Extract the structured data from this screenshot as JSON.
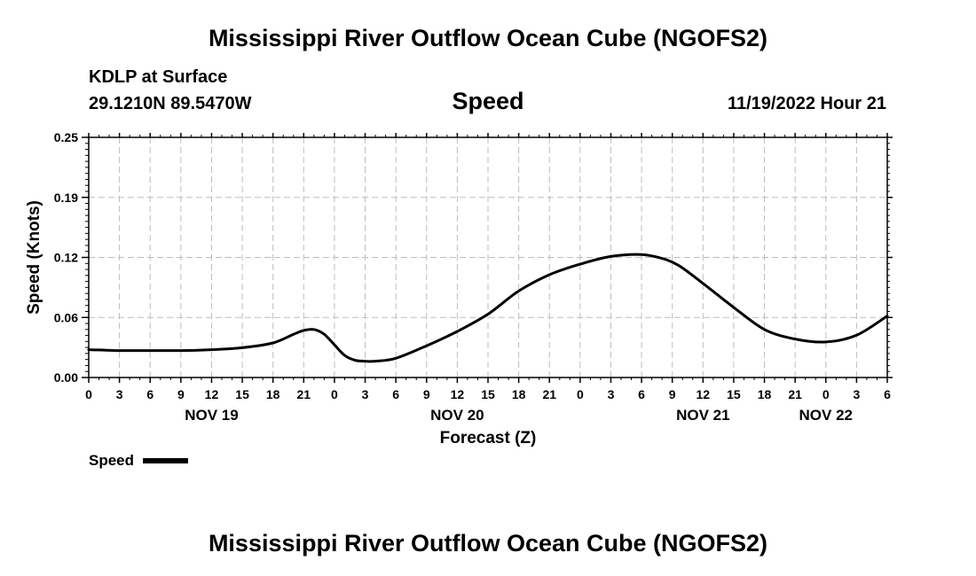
{
  "header": {
    "title": "Mississippi River Outflow Ocean Cube (NGOFS2)",
    "station": "KDLP at Surface",
    "coordinates": "29.1210N  89.5470W",
    "panel_title": "Speed",
    "datetime": "11/19/2022 Hour 21"
  },
  "legend": {
    "label": "Speed"
  },
  "footer": {
    "title": "Mississippi River Outflow Ocean Cube (NGOFS2)"
  },
  "chart_data": {
    "type": "line",
    "title": "Speed",
    "xlabel": "Forecast (Z)",
    "ylabel": "Speed (Knots)",
    "ylim": [
      0,
      0.25
    ],
    "yticks": [
      "0.00",
      "0.06",
      "0.12",
      "0.19",
      "0.25"
    ],
    "xlim_hours": [
      0,
      78
    ],
    "xtick_labels": [
      "0",
      "3",
      "6",
      "9",
      "12",
      "15",
      "18",
      "21",
      "0",
      "3",
      "6",
      "9",
      "12",
      "15",
      "18",
      "21",
      "0",
      "3",
      "6",
      "9",
      "12",
      "15",
      "18",
      "21",
      "0",
      "3",
      "6"
    ],
    "date_labels": [
      {
        "hour": 12,
        "label": "NOV 19"
      },
      {
        "hour": 36,
        "label": "NOV 20"
      },
      {
        "hour": 60,
        "label": "NOV 21"
      },
      {
        "hour": 72,
        "label": "NOV 22"
      }
    ],
    "grid": true,
    "series": [
      {
        "name": "Speed",
        "color": "#000000",
        "x_hours": [
          0,
          3,
          6,
          9,
          12,
          15,
          18,
          20,
          21,
          22,
          23,
          24,
          25,
          26,
          27,
          28,
          30,
          33,
          36,
          39,
          42,
          45,
          48,
          51,
          54,
          56,
          57,
          58,
          60,
          63,
          66,
          69,
          72,
          75,
          78
        ],
        "values": [
          0.029,
          0.028,
          0.028,
          0.028,
          0.029,
          0.031,
          0.036,
          0.045,
          0.049,
          0.05,
          0.045,
          0.034,
          0.023,
          0.018,
          0.017,
          0.017,
          0.02,
          0.033,
          0.048,
          0.066,
          0.09,
          0.107,
          0.118,
          0.126,
          0.128,
          0.124,
          0.12,
          0.114,
          0.098,
          0.073,
          0.05,
          0.04,
          0.037,
          0.044,
          0.064
        ]
      }
    ]
  }
}
